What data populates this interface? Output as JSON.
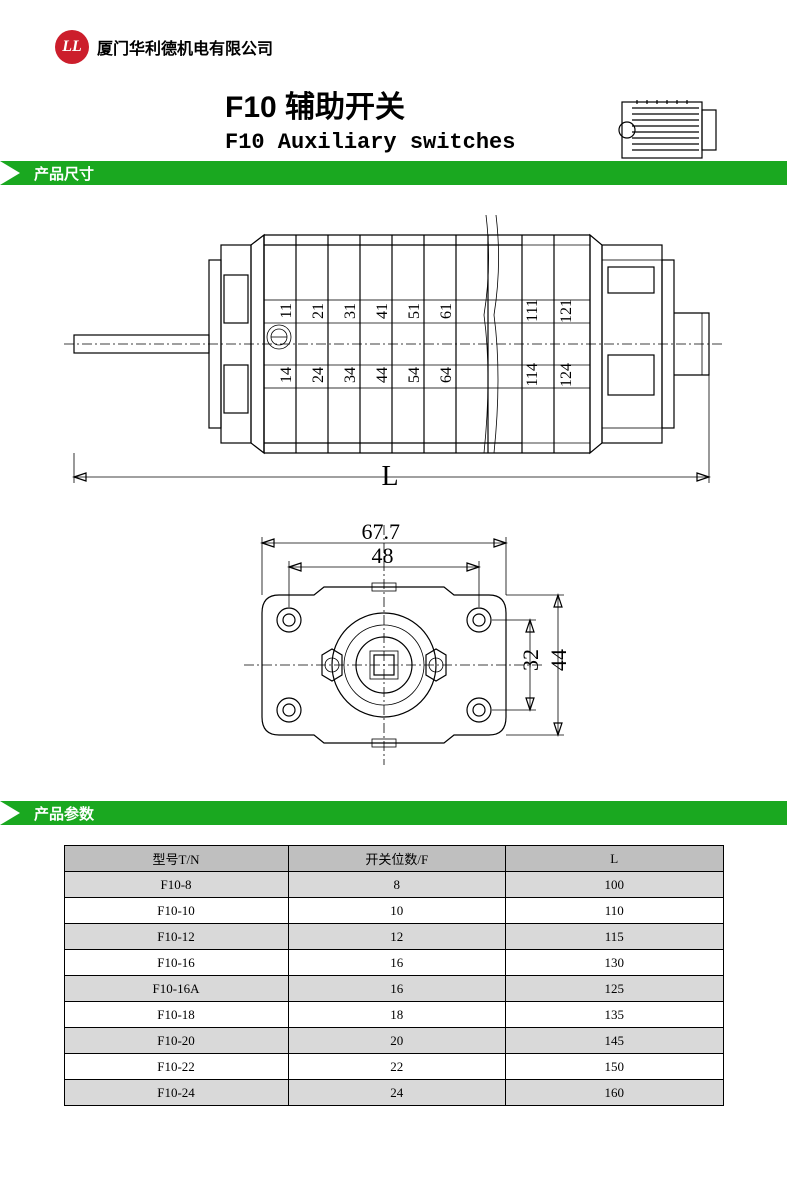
{
  "header": {
    "logo_text": "LL",
    "company": "厦门华利德机电有限公司"
  },
  "title": {
    "cn": "F10 辅助开关",
    "en": "F10 Auxiliary switches"
  },
  "sections": {
    "dimensions": "产品尺寸",
    "parameters": "产品参数"
  },
  "side_view": {
    "top_numbers": [
      "11",
      "21",
      "31",
      "41",
      "51",
      "61",
      "111",
      "121"
    ],
    "bottom_numbers": [
      "14",
      "24",
      "34",
      "44",
      "54",
      "64",
      "114",
      "124"
    ],
    "length_label": "L"
  },
  "front_view": {
    "dim_top_outer": "67.7",
    "dim_top_inner": "48",
    "dim_right_inner": "32",
    "dim_right_outer": "44"
  },
  "table": {
    "headers": [
      "型号T/N",
      "开关位数/F",
      "L"
    ],
    "rows": [
      {
        "model": "F10-8",
        "positions": "8",
        "L": "100",
        "shade": true
      },
      {
        "model": "F10-10",
        "positions": "10",
        "L": "110",
        "shade": false
      },
      {
        "model": "F10-12",
        "positions": "12",
        "L": "115",
        "shade": true
      },
      {
        "model": "F10-16",
        "positions": "16",
        "L": "130",
        "shade": false
      },
      {
        "model": "F10-16A",
        "positions": "16",
        "L": "125",
        "shade": true
      },
      {
        "model": "F10-18",
        "positions": "18",
        "L": "135",
        "shade": false
      },
      {
        "model": "F10-20",
        "positions": "20",
        "L": "145",
        "shade": true
      },
      {
        "model": "F10-22",
        "positions": "22",
        "L": "150",
        "shade": false
      },
      {
        "model": "F10-24",
        "positions": "24",
        "L": "160",
        "shade": true
      }
    ],
    "col_widths": [
      "34%",
      "33%",
      "33%"
    ]
  },
  "colors": {
    "brand_red": "#cc1e2c",
    "section_green": "#1aa820",
    "table_header_bg": "#bfbfbf",
    "table_shade_bg": "#d9d9d9",
    "text": "#000000",
    "background": "#ffffff"
  }
}
